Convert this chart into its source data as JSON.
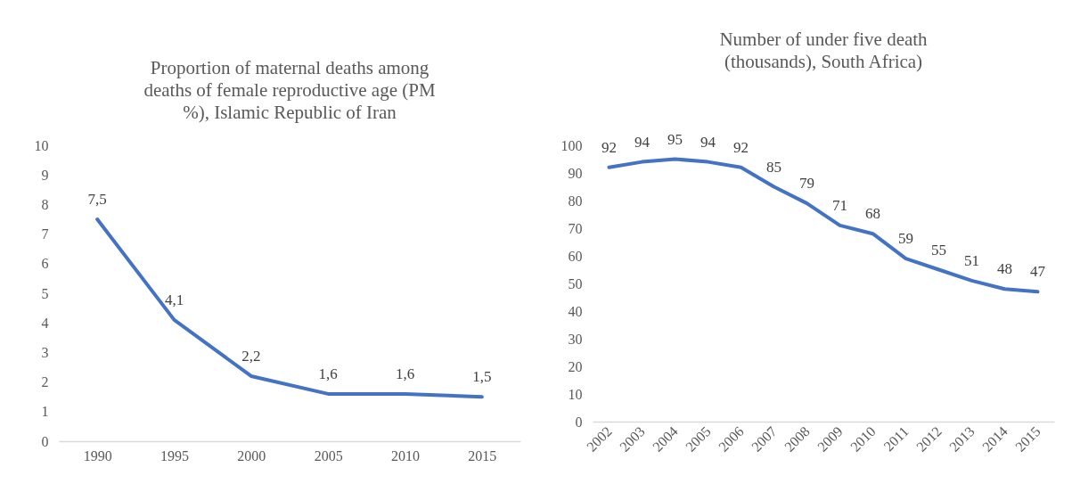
{
  "chart_data": [
    {
      "type": "line",
      "title": "Proportion of maternal deaths among deaths of female reproductive age (PM %), Islamic Republic of Iran",
      "categories": [
        "1990",
        "1995",
        "2000",
        "2005",
        "2010",
        "2015"
      ],
      "series": [
        {
          "color": "#4472c4",
          "values": [
            7.5,
            4.1,
            2.2,
            1.6,
            1.6,
            1.5
          ]
        }
      ],
      "value_labels": [
        "7,5",
        "4,1",
        "2,2",
        "1,6",
        "1,6",
        "1,5"
      ],
      "ylim": [
        0,
        10
      ],
      "yticks": [
        0,
        1,
        2,
        3,
        4,
        5,
        6,
        7,
        8,
        9,
        10
      ],
      "grid": false,
      "legend": false,
      "marker": "none",
      "line_style": "solid"
    },
    {
      "type": "line",
      "title": "Number of under five death (thousands), South Africa)",
      "categories": [
        "2002",
        "2003",
        "2004",
        "2005",
        "2006",
        "2007",
        "2008",
        "2009",
        "2010",
        "2011",
        "2012",
        "2013",
        "2014",
        "2015"
      ],
      "series": [
        {
          "color": "#4472c4",
          "values": [
            92,
            94,
            95,
            94,
            92,
            85,
            79,
            71,
            68,
            59,
            55,
            51,
            48,
            47
          ]
        }
      ],
      "data_labels": true,
      "ylim": [
        0,
        100
      ],
      "yticks": [
        0,
        10,
        20,
        30,
        40,
        50,
        60,
        70,
        80,
        90,
        100
      ],
      "grid": false,
      "legend": false,
      "marker": "none",
      "line_style": "solid"
    }
  ]
}
